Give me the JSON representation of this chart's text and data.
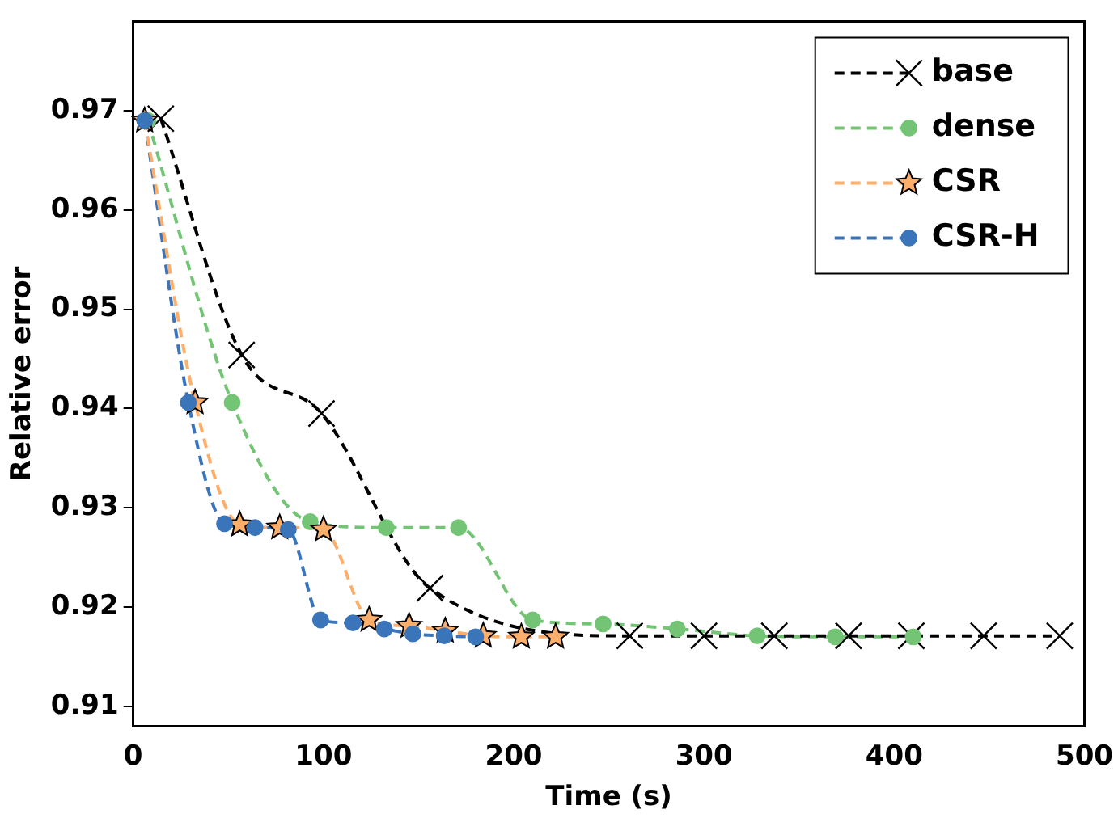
{
  "chart_data": {
    "type": "line",
    "xlabel": "Time (s)",
    "ylabel": "Relative error",
    "xlim": [
      0,
      500
    ],
    "xticks": [
      0,
      100,
      200,
      300,
      400,
      500
    ],
    "ylim": [
      0.908,
      0.979
    ],
    "yticks": [
      0.91,
      0.92,
      0.93,
      0.94,
      0.95,
      0.96,
      0.97
    ],
    "grid": false,
    "legend": "top right",
    "line_style": "dashed",
    "series": [
      {
        "name": "base",
        "color": "#000000",
        "marker": "cross",
        "x": [
          14.5,
          57,
          99,
          156,
          261,
          300,
          337,
          376,
          409,
          447,
          487
        ],
        "values": [
          0.9692,
          0.9454,
          0.9395,
          0.9219,
          0.9171,
          0.9171,
          0.9171,
          0.9171,
          0.9171,
          0.9171,
          0.9171
        ]
      },
      {
        "name": "dense",
        "color": "#74c476",
        "marker": "circle",
        "x": [
          7.7,
          52,
          93,
          133,
          171,
          210,
          247,
          286,
          328,
          369,
          410
        ],
        "values": [
          0.969,
          0.9406,
          0.9286,
          0.928,
          0.928,
          0.9187,
          0.9183,
          0.9178,
          0.9171,
          0.917,
          0.917
        ]
      },
      {
        "name": "CSR",
        "color": "#fdae6b",
        "marker": "star",
        "x": [
          6,
          32.5,
          56,
          77,
          100,
          124,
          145,
          164,
          184,
          204,
          222
        ],
        "values": [
          0.969,
          0.9406,
          0.9283,
          0.928,
          0.9278,
          0.9187,
          0.9181,
          0.9176,
          0.9171,
          0.917,
          0.917
        ]
      },
      {
        "name": "CSR-H",
        "color": "#3b75b9",
        "marker": "circle",
        "x": [
          6,
          29,
          48,
          64,
          81.5,
          98.5,
          115.5,
          132,
          147,
          163.5,
          180
        ],
        "values": [
          0.969,
          0.9406,
          0.9284,
          0.928,
          0.9278,
          0.9187,
          0.9184,
          0.9178,
          0.9173,
          0.9171,
          0.917
        ]
      }
    ]
  }
}
